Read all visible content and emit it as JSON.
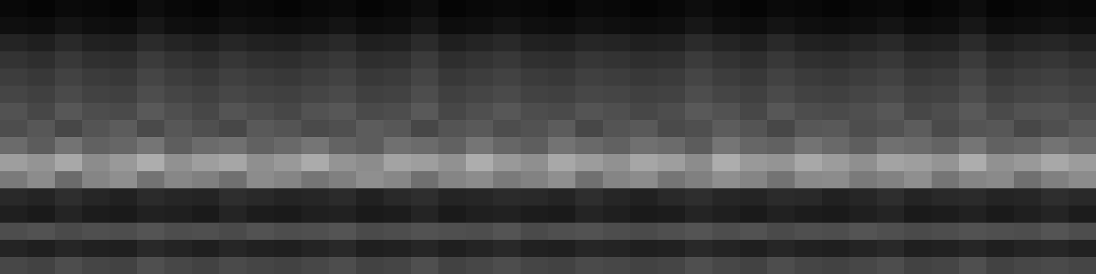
{
  "chart_data": {
    "type": "heatmap",
    "tick_labels": false,
    "zlim": [
      0,
      100
    ],
    "cells": [
      [
        3,
        2,
        4,
        3,
        2,
        5,
        3,
        2,
        4,
        3,
        2,
        3,
        4,
        2,
        3,
        5,
        2,
        3,
        4,
        3,
        2,
        4,
        3,
        2,
        3,
        5,
        3,
        2,
        4,
        3,
        2,
        3,
        4,
        2,
        3,
        5,
        2,
        3,
        4,
        3
      ],
      [
        6,
        5,
        8,
        6,
        5,
        9,
        6,
        5,
        7,
        6,
        5,
        6,
        8,
        5,
        6,
        9,
        5,
        6,
        8,
        6,
        5,
        7,
        6,
        5,
        6,
        9,
        6,
        5,
        8,
        6,
        5,
        6,
        8,
        5,
        6,
        9,
        5,
        6,
        7,
        6
      ],
      [
        14,
        12,
        16,
        13,
        12,
        17,
        14,
        12,
        15,
        13,
        12,
        14,
        16,
        12,
        13,
        17,
        12,
        14,
        16,
        13,
        12,
        15,
        14,
        12,
        13,
        17,
        14,
        12,
        16,
        13,
        12,
        14,
        16,
        12,
        13,
        17,
        12,
        14,
        15,
        13
      ],
      [
        20,
        18,
        22,
        19,
        18,
        23,
        20,
        18,
        21,
        19,
        18,
        20,
        22,
        18,
        19,
        23,
        18,
        20,
        22,
        19,
        18,
        21,
        20,
        18,
        19,
        23,
        20,
        18,
        22,
        19,
        18,
        20,
        22,
        18,
        19,
        23,
        18,
        20,
        21,
        19
      ],
      [
        24,
        22,
        26,
        23,
        22,
        27,
        24,
        22,
        25,
        23,
        22,
        24,
        26,
        22,
        23,
        27,
        22,
        24,
        26,
        23,
        22,
        25,
        24,
        22,
        23,
        27,
        24,
        22,
        26,
        23,
        22,
        24,
        26,
        22,
        23,
        27,
        22,
        24,
        25,
        23
      ],
      [
        27,
        25,
        29,
        26,
        25,
        30,
        27,
        25,
        28,
        26,
        25,
        27,
        29,
        25,
        26,
        30,
        25,
        27,
        29,
        26,
        25,
        28,
        27,
        25,
        26,
        30,
        27,
        25,
        29,
        26,
        25,
        27,
        29,
        25,
        26,
        30,
        25,
        27,
        28,
        26
      ],
      [
        32,
        28,
        34,
        30,
        29,
        35,
        31,
        28,
        33,
        30,
        28,
        32,
        34,
        29,
        30,
        35,
        28,
        31,
        34,
        30,
        29,
        33,
        31,
        28,
        30,
        35,
        32,
        28,
        34,
        30,
        29,
        31,
        34,
        28,
        30,
        35,
        29,
        32,
        33,
        30
      ],
      [
        30,
        34,
        28,
        33,
        36,
        29,
        34,
        31,
        28,
        35,
        33,
        29,
        31,
        36,
        34,
        28,
        33,
        35,
        30,
        32,
        36,
        28,
        33,
        35,
        29,
        31,
        36,
        33,
        28,
        34,
        35,
        30,
        32,
        36,
        29,
        33,
        34,
        28,
        31,
        35
      ],
      [
        42,
        36,
        45,
        38,
        40,
        46,
        37,
        42,
        44,
        38,
        41,
        46,
        39,
        36,
        44,
        42,
        38,
        46,
        40,
        37,
        45,
        41,
        38,
        44,
        42,
        36,
        46,
        40,
        38,
        45,
        41,
        37,
        44,
        42,
        39,
        46,
        38,
        40,
        45,
        41
      ],
      [
        62,
        58,
        66,
        55,
        60,
        68,
        57,
        62,
        65,
        56,
        60,
        67,
        58,
        55,
        64,
        62,
        57,
        68,
        60,
        56,
        66,
        61,
        57,
        65,
        62,
        55,
        68,
        60,
        58,
        66,
        61,
        56,
        64,
        62,
        58,
        68,
        57,
        60,
        66,
        61
      ],
      [
        48,
        55,
        42,
        52,
        56,
        45,
        53,
        50,
        44,
        55,
        52,
        46,
        50,
        56,
        53,
        44,
        52,
        55,
        48,
        51,
        56,
        44,
        52,
        55,
        46,
        50,
        56,
        52,
        45,
        54,
        55,
        48,
        51,
        56,
        46,
        52,
        54,
        44,
        50,
        55
      ],
      [
        16,
        14,
        18,
        15,
        13,
        17,
        15,
        14,
        18,
        16,
        14,
        15,
        17,
        13,
        16,
        18,
        14,
        15,
        17,
        16,
        14,
        18,
        15,
        13,
        16,
        18,
        15,
        14,
        17,
        16,
        13,
        15,
        18,
        14,
        16,
        17,
        14,
        15,
        18,
        16
      ],
      [
        12,
        10,
        14,
        11,
        10,
        13,
        12,
        10,
        14,
        11,
        10,
        12,
        13,
        10,
        11,
        14,
        10,
        12,
        13,
        11,
        10,
        14,
        12,
        10,
        11,
        14,
        12,
        10,
        13,
        11,
        10,
        12,
        14,
        10,
        11,
        13,
        10,
        12,
        14,
        11
      ],
      [
        30,
        32,
        29,
        31,
        30,
        33,
        30,
        31,
        29,
        32,
        30,
        31,
        33,
        29,
        30,
        32,
        31,
        30,
        33,
        29,
        31,
        32,
        30,
        29,
        31,
        33,
        30,
        32,
        29,
        31,
        30,
        33,
        31,
        29,
        30,
        32,
        31,
        30,
        33,
        30
      ],
      [
        14,
        12,
        15,
        13,
        12,
        16,
        14,
        12,
        15,
        13,
        12,
        14,
        16,
        12,
        13,
        15,
        12,
        14,
        16,
        13,
        12,
        15,
        14,
        12,
        13,
        16,
        14,
        12,
        15,
        13,
        12,
        14,
        16,
        12,
        13,
        15,
        12,
        14,
        15,
        13
      ],
      [
        28,
        26,
        30,
        27,
        26,
        31,
        28,
        26,
        29,
        27,
        26,
        28,
        30,
        26,
        27,
        31,
        26,
        28,
        30,
        27,
        26,
        29,
        28,
        26,
        27,
        31,
        28,
        26,
        30,
        27,
        26,
        28,
        30,
        26,
        27,
        31,
        26,
        28,
        29,
        27
      ]
    ]
  }
}
